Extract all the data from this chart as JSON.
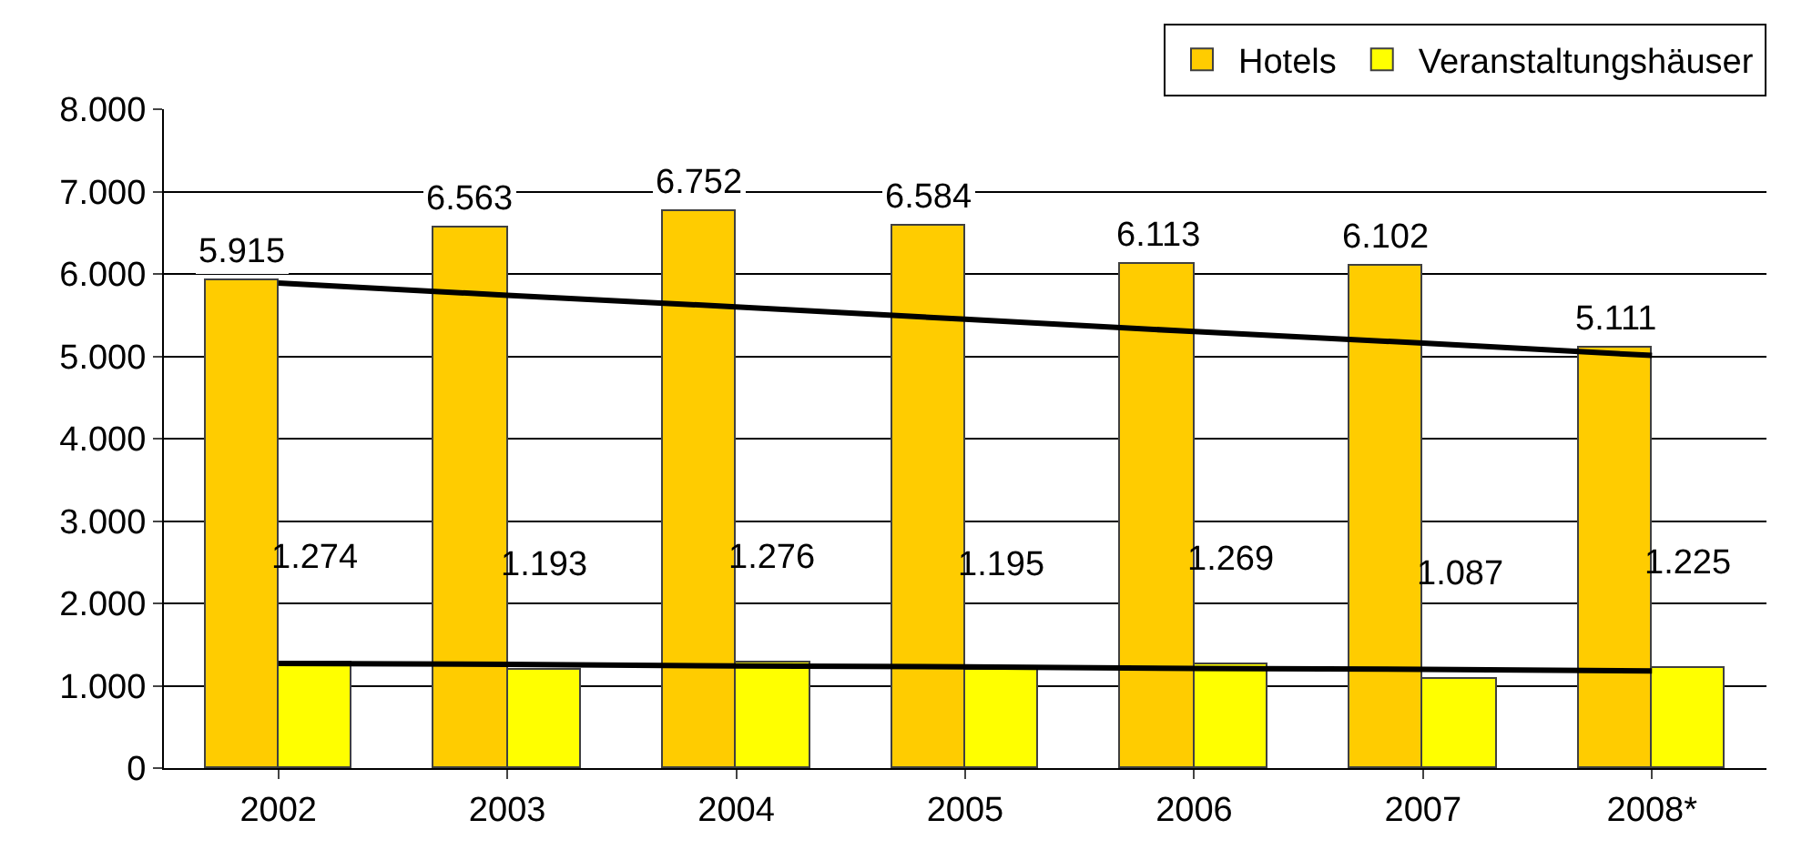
{
  "chart_data": {
    "type": "bar",
    "categories": [
      "2002",
      "2003",
      "2004",
      "2005",
      "2006",
      "2007",
      "2008*"
    ],
    "series": [
      {
        "name": "Hotels",
        "color": "#ffcc00",
        "values": [
          5915,
          6563,
          6752,
          6584,
          6113,
          6102,
          5111
        ]
      },
      {
        "name": "Veranstaltungshäuser",
        "color": "#ffff00",
        "values": [
          1274,
          1193,
          1276,
          1195,
          1269,
          1087,
          1225
        ]
      },
      {
        "type": "line",
        "color": "#000000",
        "values": [
          5890,
          5740,
          5600,
          5450,
          5300,
          5160,
          5010
        ]
      },
      {
        "type": "line",
        "color": "#000000",
        "values": [
          1270,
          1260,
          1240,
          1230,
          1210,
          1200,
          1180
        ]
      }
    ],
    "ylim": [
      0,
      8000
    ],
    "yticks": [
      {
        "value": 0,
        "label": "0"
      },
      {
        "value": 1000,
        "label": "1.000"
      },
      {
        "value": 2000,
        "label": "2.000"
      },
      {
        "value": 3000,
        "label": "3.000"
      },
      {
        "value": 4000,
        "label": "4.000"
      },
      {
        "value": 5000,
        "label": "5.000"
      },
      {
        "value": 6000,
        "label": "6.000"
      },
      {
        "value": 7000,
        "label": "7.000"
      },
      {
        "value": 8000,
        "label": "8.000"
      }
    ],
    "value_labels": [
      [
        "5.915",
        "6.563",
        "6.752",
        "6.584",
        "6.113",
        "6.102",
        "5.111"
      ],
      [
        "1.274",
        "1.193",
        "1.276",
        "1.195",
        "1.269",
        "1.087",
        "1.225"
      ]
    ],
    "grid": "y",
    "legend": "top right"
  }
}
